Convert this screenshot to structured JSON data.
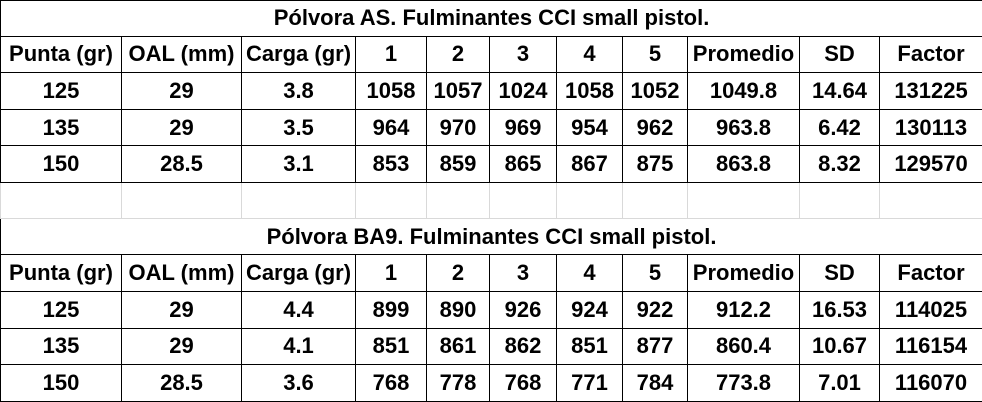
{
  "headers": [
    "Punta (gr)",
    "OAL (mm)",
    "Carga (gr)",
    "1",
    "2",
    "3",
    "4",
    "5",
    "Promedio",
    "SD",
    "Factor"
  ],
  "tables": [
    {
      "title": "Pólvora AS. Fulminantes CCI small pistol.",
      "rows": [
        [
          "125",
          "29",
          "3.8",
          "1058",
          "1057",
          "1024",
          "1058",
          "1052",
          "1049.8",
          "14.64",
          "131225"
        ],
        [
          "135",
          "29",
          "3.5",
          "964",
          "970",
          "969",
          "954",
          "962",
          "963.8",
          "6.42",
          "130113"
        ],
        [
          "150",
          "28.5",
          "3.1",
          "853",
          "859",
          "865",
          "867",
          "875",
          "863.8",
          "8.32",
          "129570"
        ]
      ]
    },
    {
      "title": "Pólvora BA9. Fulminantes CCI small pistol.",
      "rows": [
        [
          "125",
          "29",
          "4.4",
          "899",
          "890",
          "926",
          "924",
          "922",
          "912.2",
          "16.53",
          "114025"
        ],
        [
          "135",
          "29",
          "4.1",
          "851",
          "861",
          "862",
          "851",
          "877",
          "860.4",
          "10.67",
          "116154"
        ],
        [
          "150",
          "28.5",
          "3.6",
          "768",
          "778",
          "768",
          "771",
          "784",
          "773.8",
          "7.01",
          "116070"
        ]
      ]
    }
  ]
}
